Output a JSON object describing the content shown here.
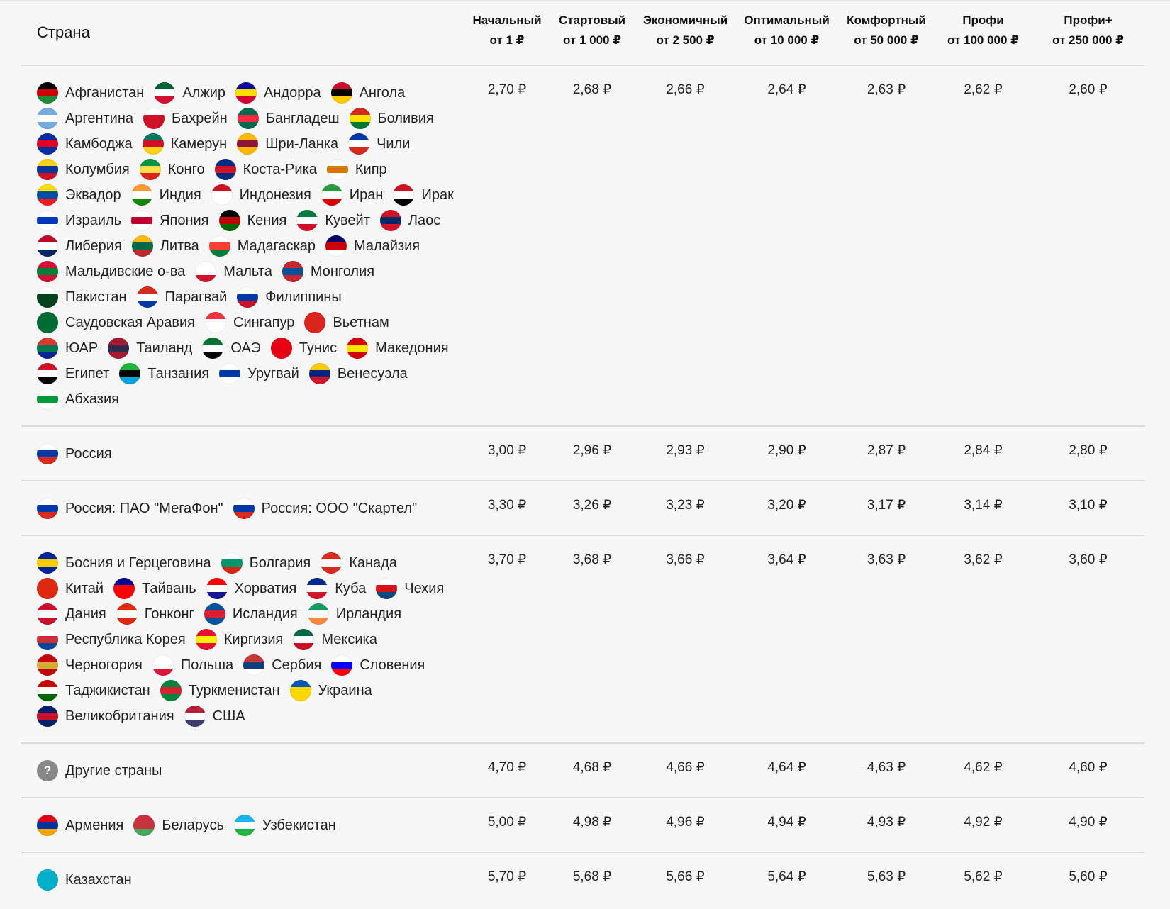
{
  "header": {
    "country_label": "Страна",
    "tiers": [
      {
        "name": "Начальный",
        "from": "от 1 ₽"
      },
      {
        "name": "Стартовый",
        "from": "от 1 000 ₽"
      },
      {
        "name": "Экономичный",
        "from": "от 2 500 ₽"
      },
      {
        "name": "Оптимальный",
        "from": "от 10 000 ₽"
      },
      {
        "name": "Комфортный",
        "from": "от 50 000 ₽"
      },
      {
        "name": "Профи",
        "from": "от 100 000 ₽"
      },
      {
        "name": "Профи+",
        "from": "от 250 000 ₽"
      }
    ]
  },
  "rows": [
    {
      "countries": [
        {
          "name": "Афганистан",
          "flag": "flag-afghanistan",
          "colors": [
            "#000000",
            "#cc0000",
            "#1f8c3a"
          ]
        },
        {
          "name": "Алжир",
          "flag": "flag-algeria",
          "colors": [
            "#006233",
            "#ffffff",
            "#d21034"
          ]
        },
        {
          "name": "Андорра",
          "flag": "flag-andorra",
          "colors": [
            "#10069f",
            "#fedd00",
            "#d50032"
          ]
        },
        {
          "name": "Ангола",
          "flag": "flag-angola",
          "colors": [
            "#cc092f",
            "#000000",
            "#ffcb00"
          ]
        },
        {
          "name": "Аргентина",
          "flag": "flag-argentina",
          "colors": [
            "#74acdf",
            "#ffffff",
            "#74acdf"
          ]
        },
        {
          "name": "Бахрейн",
          "flag": "flag-bahrain",
          "colors": [
            "#ffffff",
            "#ce1126",
            "#ce1126"
          ]
        },
        {
          "name": "Бангладеш",
          "flag": "flag-bangladesh",
          "colors": [
            "#006a4e",
            "#f42a41",
            "#006a4e"
          ]
        },
        {
          "name": "Боливия",
          "flag": "flag-bolivia",
          "colors": [
            "#d52b1e",
            "#f9e300",
            "#007934"
          ]
        },
        {
          "name": "Камбоджа",
          "flag": "flag-cambodia",
          "colors": [
            "#032ea1",
            "#e00025",
            "#032ea1"
          ]
        },
        {
          "name": "Камерун",
          "flag": "flag-cameroon",
          "colors": [
            "#007a5e",
            "#ce1126",
            "#fcd116"
          ]
        },
        {
          "name": "Шри-Ланка",
          "flag": "flag-sri-lanka",
          "colors": [
            "#ffb700",
            "#8d153a",
            "#ffb700"
          ]
        },
        {
          "name": "Чили",
          "flag": "flag-chile",
          "colors": [
            "#0039a6",
            "#ffffff",
            "#d52b1e"
          ]
        },
        {
          "name": "Колумбия",
          "flag": "flag-colombia",
          "colors": [
            "#fcd116",
            "#003893",
            "#ce1126"
          ]
        },
        {
          "name": "Конго",
          "flag": "flag-congo",
          "colors": [
            "#009543",
            "#fbde4a",
            "#dc241f"
          ]
        },
        {
          "name": "Коста-Рика",
          "flag": "flag-costa-rica",
          "colors": [
            "#002b7f",
            "#ce1126",
            "#002b7f"
          ]
        },
        {
          "name": "Кипр",
          "flag": "flag-cyprus",
          "colors": [
            "#ffffff",
            "#d57800",
            "#ffffff"
          ]
        },
        {
          "name": "Эквадор",
          "flag": "flag-ecuador",
          "colors": [
            "#ffdd00",
            "#034ea2",
            "#ed1c24"
          ]
        },
        {
          "name": "Индия",
          "flag": "flag-india",
          "colors": [
            "#ff9933",
            "#ffffff",
            "#138808"
          ]
        },
        {
          "name": "Индонезия",
          "flag": "flag-indonesia",
          "colors": [
            "#ce1126",
            "#ffffff",
            "#ffffff"
          ]
        },
        {
          "name": "Иран",
          "flag": "flag-iran",
          "colors": [
            "#239f40",
            "#ffffff",
            "#da0000"
          ]
        },
        {
          "name": "Ирак",
          "flag": "flag-iraq",
          "colors": [
            "#ce1126",
            "#ffffff",
            "#000000"
          ]
        },
        {
          "name": "Израиль",
          "flag": "flag-israel",
          "colors": [
            "#ffffff",
            "#0038b8",
            "#ffffff"
          ]
        },
        {
          "name": "Япония",
          "flag": "flag-japan",
          "colors": [
            "#ffffff",
            "#bc002d",
            "#ffffff"
          ]
        },
        {
          "name": "Кения",
          "flag": "flag-kenya",
          "colors": [
            "#000000",
            "#bb0000",
            "#006600"
          ]
        },
        {
          "name": "Кувейт",
          "flag": "flag-kuwait",
          "colors": [
            "#007a3d",
            "#ffffff",
            "#ce1126"
          ]
        },
        {
          "name": "Лаос",
          "flag": "flag-laos",
          "colors": [
            "#ce1126",
            "#002868",
            "#ce1126"
          ]
        },
        {
          "name": "Либерия",
          "flag": "flag-liberia",
          "colors": [
            "#bf0a30",
            "#ffffff",
            "#002868"
          ]
        },
        {
          "name": "Литва",
          "flag": "flag-lithuania",
          "colors": [
            "#fdb913",
            "#006a44",
            "#c1272d"
          ]
        },
        {
          "name": "Мадагаскар",
          "flag": "flag-madagascar",
          "colors": [
            "#ffffff",
            "#fc3d32",
            "#007e3a"
          ]
        },
        {
          "name": "Малайзия",
          "flag": "flag-malaysia",
          "colors": [
            "#010066",
            "#cc0001",
            "#ffffff"
          ]
        },
        {
          "name": "Мальдивские о-ва",
          "flag": "flag-maldives",
          "colors": [
            "#d21034",
            "#007e3a",
            "#d21034"
          ]
        },
        {
          "name": "Мальта",
          "flag": "flag-malta",
          "colors": [
            "#ffffff",
            "#ffffff",
            "#cf142b"
          ]
        },
        {
          "name": "Монголия",
          "flag": "flag-mongolia",
          "colors": [
            "#c4272f",
            "#015197",
            "#c4272f"
          ]
        },
        {
          "name": "Пакистан",
          "flag": "flag-pakistan",
          "colors": [
            "#ffffff",
            "#01411c",
            "#01411c"
          ]
        },
        {
          "name": "Парагвай",
          "flag": "flag-paraguay",
          "colors": [
            "#d52b1e",
            "#ffffff",
            "#0038a8"
          ]
        },
        {
          "name": "Филиппины",
          "flag": "flag-philippines",
          "colors": [
            "#ffffff",
            "#0038a8",
            "#ce1126"
          ]
        },
        {
          "name": "Саудовская Аравия",
          "flag": "flag-saudi-arabia",
          "colors": [
            "#006c35",
            "#006c35",
            "#006c35"
          ]
        },
        {
          "name": "Сингапур",
          "flag": "flag-singapore",
          "colors": [
            "#ef3340",
            "#ffffff",
            "#ffffff"
          ]
        },
        {
          "name": "Вьетнам",
          "flag": "flag-vietnam",
          "colors": [
            "#da251d",
            "#da251d",
            "#da251d"
          ]
        },
        {
          "name": "ЮАР",
          "flag": "flag-south-africa",
          "colors": [
            "#de3831",
            "#007a4d",
            "#002395"
          ]
        },
        {
          "name": "Таиланд",
          "flag": "flag-thailand",
          "colors": [
            "#a51931",
            "#2d2a4a",
            "#a51931"
          ]
        },
        {
          "name": "ОАЭ",
          "flag": "flag-uae",
          "colors": [
            "#00732f",
            "#ffffff",
            "#000000"
          ]
        },
        {
          "name": "Тунис",
          "flag": "flag-tunisia",
          "colors": [
            "#e70013",
            "#e70013",
            "#e70013"
          ]
        },
        {
          "name": "Македония",
          "flag": "flag-macedonia",
          "colors": [
            "#d20000",
            "#ffe600",
            "#d20000"
          ]
        },
        {
          "name": "Египет",
          "flag": "flag-egypt",
          "colors": [
            "#ce1126",
            "#ffffff",
            "#000000"
          ]
        },
        {
          "name": "Танзания",
          "flag": "flag-tanzania",
          "colors": [
            "#1eb53a",
            "#000000",
            "#00a3dd"
          ]
        },
        {
          "name": "Уругвай",
          "flag": "flag-uruguay",
          "colors": [
            "#ffffff",
            "#0038a8",
            "#ffffff"
          ]
        },
        {
          "name": "Венесуэла",
          "flag": "flag-venezuela",
          "colors": [
            "#ffcc00",
            "#00247d",
            "#cf142b"
          ]
        },
        {
          "name": "Абхазия",
          "flag": "flag-abkhazia",
          "colors": [
            "#ffffff",
            "#00993e",
            "#ffffff"
          ]
        }
      ],
      "prices": [
        "2,70 ₽",
        "2,68 ₽",
        "2,66 ₽",
        "2,64 ₽",
        "2,63 ₽",
        "2,62 ₽",
        "2,60 ₽"
      ]
    },
    {
      "countries": [
        {
          "name": "Россия",
          "flag": "flag-russia",
          "colors": [
            "#ffffff",
            "#0039a6",
            "#d52b1e"
          ]
        }
      ],
      "prices": [
        "3,00 ₽",
        "2,96 ₽",
        "2,93 ₽",
        "2,90 ₽",
        "2,87 ₽",
        "2,84 ₽",
        "2,80 ₽"
      ]
    },
    {
      "countries": [
        {
          "name": "Россия: ПАО \"МегаФон\"",
          "flag": "flag-russia",
          "colors": [
            "#ffffff",
            "#0039a6",
            "#d52b1e"
          ]
        },
        {
          "name": "Россия: ООО \"Скартел\"",
          "flag": "flag-russia",
          "colors": [
            "#ffffff",
            "#0039a6",
            "#d52b1e"
          ]
        }
      ],
      "prices": [
        "3,30 ₽",
        "3,26 ₽",
        "3,23 ₽",
        "3,20 ₽",
        "3,17 ₽",
        "3,14 ₽",
        "3,10 ₽"
      ]
    },
    {
      "countries": [
        {
          "name": "Босния и Герцеговина",
          "flag": "flag-bosnia",
          "colors": [
            "#002395",
            "#fecb00",
            "#002395"
          ]
        },
        {
          "name": "Болгария",
          "flag": "flag-bulgaria",
          "colors": [
            "#ffffff",
            "#00966e",
            "#d62612"
          ]
        },
        {
          "name": "Канада",
          "flag": "flag-canada",
          "colors": [
            "#d52b1e",
            "#ffffff",
            "#d52b1e"
          ]
        },
        {
          "name": "Китай",
          "flag": "flag-china",
          "colors": [
            "#de2910",
            "#de2910",
            "#de2910"
          ]
        },
        {
          "name": "Тайвань",
          "flag": "flag-taiwan",
          "colors": [
            "#000095",
            "#fe0000",
            "#fe0000"
          ]
        },
        {
          "name": "Хорватия",
          "flag": "flag-croatia",
          "colors": [
            "#ff0000",
            "#ffffff",
            "#171796"
          ]
        },
        {
          "name": "Куба",
          "flag": "flag-cuba",
          "colors": [
            "#002a8f",
            "#ffffff",
            "#cf142b"
          ]
        },
        {
          "name": "Чехия",
          "flag": "flag-czech",
          "colors": [
            "#ffffff",
            "#d7141a",
            "#11457e"
          ]
        },
        {
          "name": "Дания",
          "flag": "flag-denmark",
          "colors": [
            "#c8102e",
            "#ffffff",
            "#c8102e"
          ]
        },
        {
          "name": "Гонконг",
          "flag": "flag-hong-kong",
          "colors": [
            "#de2910",
            "#ffffff",
            "#de2910"
          ]
        },
        {
          "name": "Исландия",
          "flag": "flag-iceland",
          "colors": [
            "#02529c",
            "#dc1e35",
            "#02529c"
          ]
        },
        {
          "name": "Ирландия",
          "flag": "flag-ireland",
          "colors": [
            "#169b62",
            "#ffffff",
            "#ff883e"
          ]
        },
        {
          "name": "Республика Корея",
          "flag": "flag-korea",
          "colors": [
            "#ffffff",
            "#cd2e3a",
            "#0047a0"
          ]
        },
        {
          "name": "Киргизия",
          "flag": "flag-kyrgyzstan",
          "colors": [
            "#e8112d",
            "#ffef00",
            "#e8112d"
          ]
        },
        {
          "name": "Мексика",
          "flag": "flag-mexico",
          "colors": [
            "#006847",
            "#ffffff",
            "#ce1126"
          ]
        },
        {
          "name": "Черногория",
          "flag": "flag-montenegro",
          "colors": [
            "#c40308",
            "#d3ae3b",
            "#c40308"
          ]
        },
        {
          "name": "Польша",
          "flag": "flag-poland",
          "colors": [
            "#ffffff",
            "#ffffff",
            "#dc143c"
          ]
        },
        {
          "name": "Сербия",
          "flag": "flag-serbia",
          "colors": [
            "#c6363c",
            "#0c4076",
            "#ffffff"
          ]
        },
        {
          "name": "Словения",
          "flag": "flag-slovenia",
          "colors": [
            "#ffffff",
            "#0000ff",
            "#ff0000"
          ]
        },
        {
          "name": "Таджикистан",
          "flag": "flag-tajikistan",
          "colors": [
            "#cc0000",
            "#ffffff",
            "#006600"
          ]
        },
        {
          "name": "Туркменистан",
          "flag": "flag-turkmenistan",
          "colors": [
            "#00843d",
            "#d22630",
            "#00843d"
          ]
        },
        {
          "name": "Украина",
          "flag": "flag-ukraine",
          "colors": [
            "#0057b7",
            "#ffd700",
            "#ffd700"
          ]
        },
        {
          "name": "Великобритания",
          "flag": "flag-uk",
          "colors": [
            "#012169",
            "#c8102e",
            "#012169"
          ]
        },
        {
          "name": "США",
          "flag": "flag-usa",
          "colors": [
            "#b22234",
            "#ffffff",
            "#3c3b6e"
          ]
        }
      ],
      "prices": [
        "3,70 ₽",
        "3,68 ₽",
        "3,66 ₽",
        "3,64 ₽",
        "3,63 ₽",
        "3,62 ₽",
        "3,60 ₽"
      ]
    },
    {
      "countries": [
        {
          "name": "Другие страны",
          "flag": "question-icon",
          "colors": [
            "#888888",
            "#888888",
            "#888888"
          ],
          "symbol": "?"
        }
      ],
      "prices": [
        "4,70 ₽",
        "4,68 ₽",
        "4,66 ₽",
        "4,64 ₽",
        "4,63 ₽",
        "4,62 ₽",
        "4,60 ₽"
      ]
    },
    {
      "countries": [
        {
          "name": "Армения",
          "flag": "flag-armenia",
          "colors": [
            "#d90012",
            "#0033a0",
            "#f2a800"
          ]
        },
        {
          "name": "Беларусь",
          "flag": "flag-belarus",
          "colors": [
            "#c8313e",
            "#c8313e",
            "#4aa657"
          ]
        },
        {
          "name": "Узбекистан",
          "flag": "flag-uzbekistan",
          "colors": [
            "#1eb5e8",
            "#ffffff",
            "#1eb53a"
          ]
        }
      ],
      "prices": [
        "5,00 ₽",
        "4,98 ₽",
        "4,96 ₽",
        "4,94 ₽",
        "4,93 ₽",
        "4,92 ₽",
        "4,90 ₽"
      ]
    },
    {
      "countries": [
        {
          "name": "Казахстан",
          "flag": "flag-kazakhstan",
          "colors": [
            "#00afca",
            "#00afca",
            "#00afca"
          ]
        }
      ],
      "prices": [
        "5,70 ₽",
        "5,68 ₽",
        "5,66 ₽",
        "5,64 ₽",
        "5,63 ₽",
        "5,62 ₽",
        "5,60 ₽"
      ]
    }
  ]
}
